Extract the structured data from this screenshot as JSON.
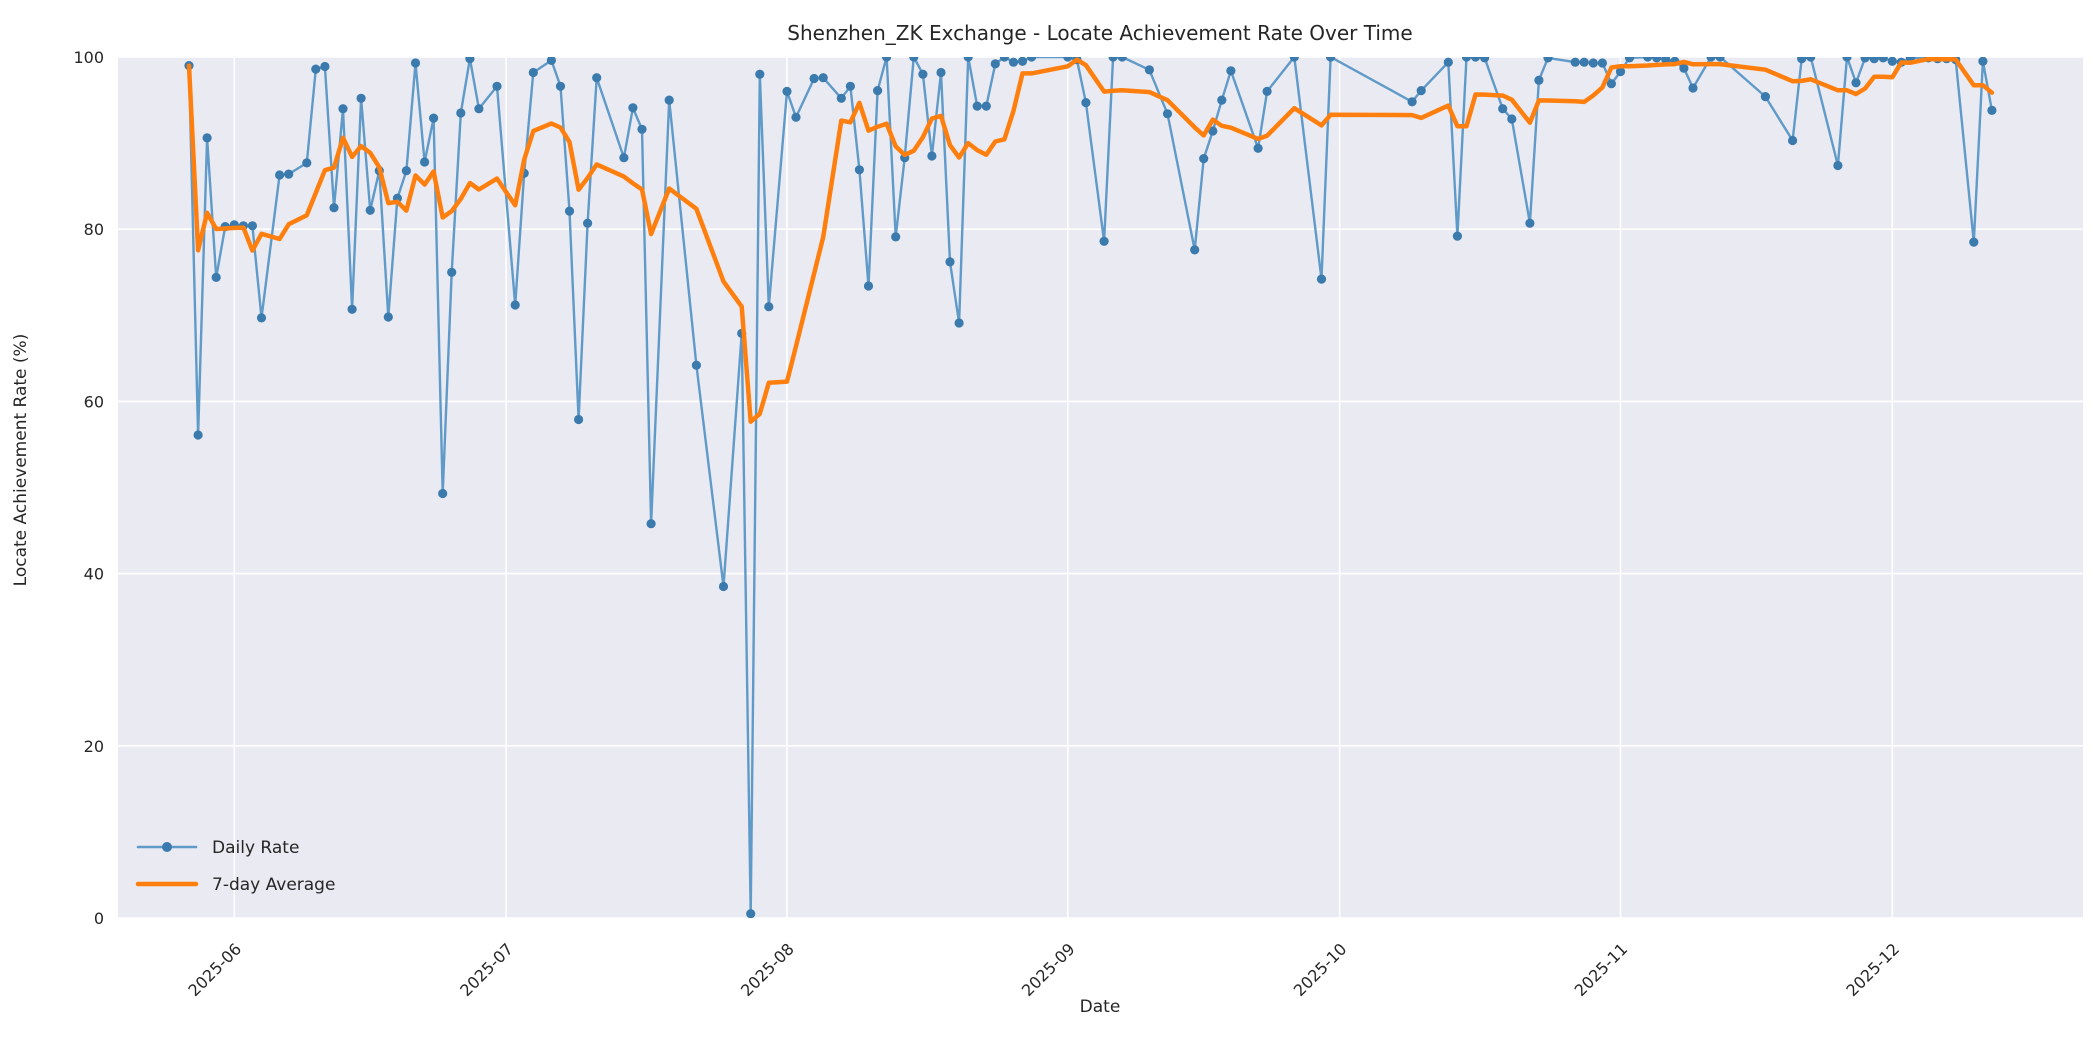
{
  "chart_data": {
    "type": "line",
    "title": "Shenzhen_ZK Exchange - Locate Achievement Rate Over Time",
    "xlabel": "Date",
    "ylabel": "Locate Achievement Rate (%)",
    "ylim": [
      0,
      100
    ],
    "grid": true,
    "plot_background": "#eaeaf2",
    "grid_color": "#ffffff",
    "text_color": "#262626",
    "legend": {
      "position": "lower-left",
      "entries": [
        {
          "label": "Daily Rate",
          "color": "#5f9ac8",
          "marker": true
        },
        {
          "label": "7-day Average",
          "color": "#ff7f0e",
          "marker": false
        }
      ]
    },
    "y_ticks": [
      0,
      20,
      40,
      60,
      80,
      100
    ],
    "x_ticks": [
      {
        "label": "2025-06",
        "t": 5
      },
      {
        "label": "2025-07",
        "t": 35
      },
      {
        "label": "2025-08",
        "t": 66
      },
      {
        "label": "2025-09",
        "t": 97
      },
      {
        "label": "2025-10",
        "t": 127
      },
      {
        "label": "2025-11",
        "t": 158
      },
      {
        "label": "2025-12",
        "t": 188
      }
    ],
    "series": [
      {
        "name": "Daily Rate",
        "style": "line-with-markers",
        "line_color": "#5f9ac8",
        "marker_color": "#3a7aad",
        "points_format": [
          "day_offset_from_2025-05-27",
          "date_2025",
          "rate_percent"
        ],
        "points": [
          [
            0,
            "05-27",
            99.0
          ],
          [
            1,
            "05-28",
            56.1
          ],
          [
            2,
            "05-29",
            90.6
          ],
          [
            3,
            "05-30",
            74.4
          ],
          [
            4,
            "05-31",
            80.3
          ],
          [
            5,
            "06-01",
            80.5
          ],
          [
            6,
            "06-02",
            80.4
          ],
          [
            7,
            "06-03",
            80.4
          ],
          [
            8,
            "06-04",
            69.7
          ],
          [
            10,
            "06-06",
            86.3
          ],
          [
            11,
            "06-07",
            86.4
          ],
          [
            13,
            "06-09",
            87.7
          ],
          [
            14,
            "06-10",
            98.6
          ],
          [
            15,
            "06-11",
            98.9
          ],
          [
            16,
            "06-12",
            82.5
          ],
          [
            17,
            "06-13",
            94.0
          ],
          [
            18,
            "06-14",
            70.7
          ],
          [
            19,
            "06-15",
            95.2
          ],
          [
            20,
            "06-16",
            82.2
          ],
          [
            21,
            "06-17",
            86.8
          ],
          [
            22,
            "06-18",
            69.8
          ],
          [
            23,
            "06-19",
            83.6
          ],
          [
            24,
            "06-20",
            86.8
          ],
          [
            25,
            "06-21",
            99.3
          ],
          [
            26,
            "06-22",
            87.8
          ],
          [
            27,
            "06-23",
            92.9
          ],
          [
            28,
            "06-24",
            49.3
          ],
          [
            29,
            "06-25",
            75.0
          ],
          [
            30,
            "06-26",
            93.5
          ],
          [
            31,
            "06-27",
            99.8
          ],
          [
            32,
            "06-28",
            94.0
          ],
          [
            34,
            "06-30",
            96.6
          ],
          [
            36,
            "07-02",
            71.2
          ],
          [
            37,
            "07-03",
            86.5
          ],
          [
            38,
            "07-04",
            98.2
          ],
          [
            40,
            "07-06",
            99.6
          ],
          [
            41,
            "07-07",
            96.6
          ],
          [
            42,
            "07-08",
            82.1
          ],
          [
            43,
            "07-09",
            57.9
          ],
          [
            44,
            "07-10",
            80.7
          ],
          [
            45,
            "07-11",
            97.6
          ],
          [
            48,
            "07-14",
            88.3
          ],
          [
            49,
            "07-15",
            94.1
          ],
          [
            50,
            "07-16",
            91.6
          ],
          [
            51,
            "07-17",
            45.8
          ],
          [
            53,
            "07-19",
            95.0
          ],
          [
            56,
            "07-22",
            64.2
          ],
          [
            59,
            "07-25",
            38.5
          ],
          [
            61,
            "07-27",
            67.9
          ],
          [
            62,
            "07-28",
            0.5
          ],
          [
            63,
            "07-29",
            98.0
          ],
          [
            64,
            "07-30",
            71.0
          ],
          [
            66,
            "08-01",
            96.0
          ],
          [
            67,
            "08-02",
            93.0
          ],
          [
            69,
            "08-04",
            97.5
          ],
          [
            70,
            "08-05",
            97.6
          ],
          [
            72,
            "08-07",
            95.2
          ],
          [
            73,
            "08-08",
            96.6
          ],
          [
            74,
            "08-09",
            86.9
          ],
          [
            75,
            "08-10",
            73.4
          ],
          [
            76,
            "08-11",
            96.1
          ],
          [
            77,
            "08-12",
            100
          ],
          [
            78,
            "08-13",
            79.1
          ],
          [
            79,
            "08-14",
            88.3
          ],
          [
            80,
            "08-15",
            100
          ],
          [
            81,
            "08-16",
            98.0
          ],
          [
            82,
            "08-17",
            88.5
          ],
          [
            83,
            "08-18",
            98.2
          ],
          [
            84,
            "08-19",
            76.2
          ],
          [
            85,
            "08-20",
            69.1
          ],
          [
            86,
            "08-21",
            100
          ],
          [
            87,
            "08-22",
            94.3
          ],
          [
            88,
            "08-23",
            94.3
          ],
          [
            89,
            "08-24",
            99.2
          ],
          [
            90,
            "08-25",
            100
          ],
          [
            91,
            "08-26",
            99.4
          ],
          [
            92,
            "08-27",
            99.5
          ],
          [
            93,
            "08-28",
            100
          ],
          [
            97,
            "09-01",
            100
          ],
          [
            98,
            "09-02",
            99.7
          ],
          [
            99,
            "09-03",
            94.7
          ],
          [
            101,
            "09-05",
            78.6
          ],
          [
            102,
            "09-06",
            100
          ],
          [
            103,
            "09-07",
            100
          ],
          [
            106,
            "09-10",
            98.5
          ],
          [
            108,
            "09-12",
            93.4
          ],
          [
            111,
            "09-15",
            77.6
          ],
          [
            112,
            "09-16",
            88.2
          ],
          [
            113,
            "09-17",
            91.4
          ],
          [
            114,
            "09-18",
            95.0
          ],
          [
            115,
            "09-19",
            98.4
          ],
          [
            118,
            "09-22",
            89.4
          ],
          [
            119,
            "09-23",
            96.0
          ],
          [
            122,
            "09-26",
            100
          ],
          [
            125,
            "09-29",
            74.2
          ],
          [
            126,
            "09-30",
            100
          ],
          [
            135,
            "10-09",
            94.8
          ],
          [
            136,
            "10-10",
            96.1
          ],
          [
            139,
            "10-13",
            99.4
          ],
          [
            140,
            "10-14",
            79.2
          ],
          [
            141,
            "10-15",
            100
          ],
          [
            142,
            "10-16",
            100
          ],
          [
            143,
            "10-17",
            99.9
          ],
          [
            145,
            "10-19",
            94.0
          ],
          [
            146,
            "10-20",
            92.8
          ],
          [
            148,
            "10-22",
            80.7
          ],
          [
            149,
            "10-23",
            97.3
          ],
          [
            150,
            "10-24",
            99.9
          ],
          [
            153,
            "10-27",
            99.4
          ],
          [
            154,
            "10-28",
            99.4
          ],
          [
            155,
            "10-29",
            99.3
          ],
          [
            156,
            "10-30",
            99.3
          ],
          [
            157,
            "10-31",
            96.9
          ],
          [
            158,
            "11-01",
            98.3
          ],
          [
            159,
            "11-02",
            99.9
          ],
          [
            161,
            "11-04",
            100
          ],
          [
            162,
            "11-05",
            99.9
          ],
          [
            163,
            "11-06",
            99.7
          ],
          [
            164,
            "11-07",
            99.5
          ],
          [
            165,
            "11-08",
            98.7
          ],
          [
            166,
            "11-09",
            96.4
          ],
          [
            168,
            "11-11",
            100
          ],
          [
            169,
            "11-12",
            100
          ],
          [
            174,
            "11-17",
            95.4
          ],
          [
            177,
            "11-20",
            90.3
          ],
          [
            178,
            "11-21",
            99.8
          ],
          [
            179,
            "11-22",
            100
          ],
          [
            182,
            "11-25",
            87.4
          ],
          [
            183,
            "11-26",
            100
          ],
          [
            184,
            "11-27",
            97.0
          ],
          [
            185,
            "11-28",
            99.9
          ],
          [
            186,
            "11-29",
            99.8
          ],
          [
            187,
            "11-30",
            99.9
          ],
          [
            188,
            "12-01",
            99.5
          ],
          [
            189,
            "12-02",
            99.4
          ],
          [
            190,
            "12-03",
            99.9
          ],
          [
            192,
            "12-05",
            99.9
          ],
          [
            193,
            "12-06",
            99.8
          ],
          [
            194,
            "12-07",
            99.8
          ],
          [
            195,
            "12-08",
            99.7
          ],
          [
            197,
            "12-10",
            78.5
          ],
          [
            198,
            "12-11",
            99.5
          ],
          [
            199,
            "12-12",
            93.8
          ]
        ]
      },
      {
        "name": "7-day Average",
        "style": "line",
        "line_color": "#ff7f0e",
        "derived": "rolling_mean_of_last_7_available_daily_points"
      }
    ]
  }
}
